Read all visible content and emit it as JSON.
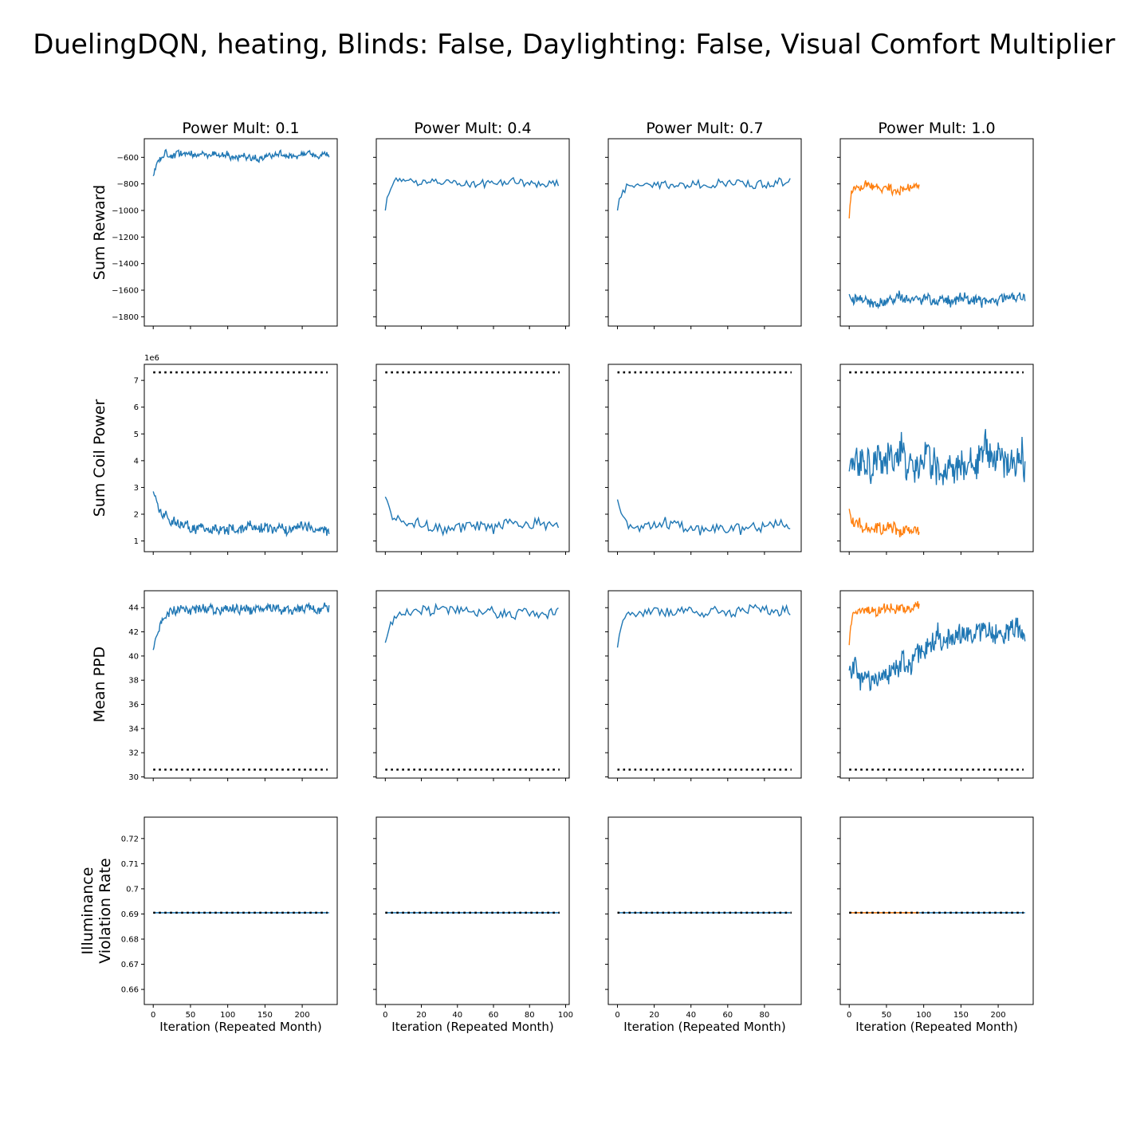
{
  "figure": {
    "title": "DuelingDQN, heating, Blinds: False, Daylighting: False, Visual Comfort Multiplier"
  },
  "chart_data": {
    "type": "line",
    "layout": "4 rows x 4 columns, shared y per row",
    "columns": [
      {
        "title": "Power Mult: 0.1",
        "xlim": [
          -12,
          247
        ],
        "xticks": [
          0,
          50,
          100,
          150,
          200
        ],
        "xlabel": "Iteration (Repeated Month)"
      },
      {
        "title": "Power Mult: 0.4",
        "xlim": [
          -5,
          102
        ],
        "xticks": [
          0,
          20,
          40,
          60,
          80,
          100
        ],
        "xlabel": "Iteration (Repeated Month)"
      },
      {
        "title": "Power Mult: 0.7",
        "xlim": [
          -5,
          100
        ],
        "xticks": [
          0,
          20,
          40,
          60,
          80
        ],
        "xlabel": "Iteration (Repeated Month)"
      },
      {
        "title": "Power Mult: 1.0",
        "xlim": [
          -12,
          247
        ],
        "xticks": [
          0,
          50,
          100,
          150,
          200
        ],
        "xlabel": "Iteration (Repeated Month)"
      }
    ],
    "rows": [
      {
        "ylabel": "Sum Reward",
        "ylim": [
          -1870,
          -460
        ],
        "yticks": [
          -1800,
          -1600,
          -1400,
          -1200,
          -1000,
          -800,
          -600
        ],
        "offset_label": ""
      },
      {
        "ylabel": "Sum Coil Power",
        "ylim": [
          0.6,
          7.6
        ],
        "yticks": [
          1,
          2,
          3,
          4,
          5,
          6,
          7
        ],
        "offset_label": "1e6"
      },
      {
        "ylabel": "Mean PPD",
        "ylim": [
          29.9,
          45.4
        ],
        "yticks": [
          30,
          32,
          34,
          36,
          38,
          40,
          42,
          44
        ],
        "offset_label": ""
      },
      {
        "ylabel": [
          "Illuminance",
          "Violation Rate"
        ],
        "ylim": [
          0.654,
          0.7285
        ],
        "yticks": [
          0.66,
          0.67,
          0.68,
          0.69,
          0.7,
          0.71,
          0.72
        ],
        "offset_label": ""
      }
    ],
    "colors": {
      "blue": "#1f77b4",
      "orange": "#ff7f0e",
      "reference": "#000000"
    },
    "reference_lines": {
      "row_1": [
        7.3
      ],
      "row_2": [
        30.6
      ],
      "row_3": [
        0.6905
      ]
    },
    "series": [
      {
        "row": 0,
        "col": 0,
        "color": "blue",
        "n": 237,
        "level": -585,
        "start": -740,
        "settle": 8,
        "noise": 18,
        "wander": 14,
        "seed": 11
      },
      {
        "row": 0,
        "col": 1,
        "color": "blue",
        "n": 97,
        "level": -790,
        "start": -1000,
        "settle": 2,
        "noise": 28,
        "wander": 10,
        "seed": 12
      },
      {
        "row": 0,
        "col": 2,
        "color": "blue",
        "n": 95,
        "level": -800,
        "start": -1000,
        "settle": 2,
        "noise": 28,
        "wander": 12,
        "seed": 13
      },
      {
        "row": 0,
        "col": 3,
        "color": "blue",
        "n": 237,
        "level": -1670,
        "start": -1630,
        "settle": 1,
        "noise": 30,
        "wander": 16,
        "seed": 14
      },
      {
        "row": 0,
        "col": 3,
        "color": "orange",
        "n": 95,
        "level": -820,
        "start": -1060,
        "settle": 2,
        "noise": 30,
        "wander": 14,
        "seed": 15
      },
      {
        "row": 1,
        "col": 0,
        "color": "blue",
        "n": 237,
        "level": 1.5,
        "start": 2.85,
        "settle": 12,
        "noise": 0.18,
        "wander": 0.08,
        "seed": 21
      },
      {
        "row": 1,
        "col": 1,
        "color": "blue",
        "n": 97,
        "level": 1.55,
        "start": 2.65,
        "settle": 3,
        "noise": 0.2,
        "wander": 0.07,
        "seed": 22
      },
      {
        "row": 1,
        "col": 2,
        "color": "blue",
        "n": 95,
        "level": 1.5,
        "start": 2.55,
        "settle": 3,
        "noise": 0.2,
        "wander": 0.07,
        "seed": 23
      },
      {
        "row": 1,
        "col": 3,
        "color": "blue",
        "n": 237,
        "level": 3.9,
        "start": 3.6,
        "settle": 1,
        "noise": 0.55,
        "wander": 0.25,
        "seed": 24
      },
      {
        "row": 1,
        "col": 3,
        "color": "orange",
        "n": 95,
        "level": 1.5,
        "start": 2.2,
        "settle": 6,
        "noise": 0.22,
        "wander": 0.08,
        "seed": 25
      },
      {
        "row": 2,
        "col": 0,
        "color": "blue",
        "n": 237,
        "level": 43.9,
        "start": 40.5,
        "settle": 10,
        "noise": 0.35,
        "wander": 0.12,
        "seed": 31
      },
      {
        "row": 2,
        "col": 1,
        "color": "blue",
        "n": 97,
        "level": 43.6,
        "start": 41.1,
        "settle": 3,
        "noise": 0.4,
        "wander": 0.12,
        "seed": 32
      },
      {
        "row": 2,
        "col": 2,
        "color": "blue",
        "n": 95,
        "level": 43.7,
        "start": 40.7,
        "settle": 3,
        "noise": 0.35,
        "wander": 0.12,
        "seed": 33
      },
      {
        "row": 2,
        "col": 3,
        "color": "blue",
        "n": 237,
        "level": 41.2,
        "start": 38.8,
        "settle": 1,
        "noise": 0.8,
        "wander": 0.3,
        "seed": 34,
        "trend_from": 37.6,
        "trend_to": 42.0
      },
      {
        "row": 2,
        "col": 3,
        "color": "orange",
        "n": 95,
        "level": 43.9,
        "start": 40.9,
        "settle": 3,
        "noise": 0.35,
        "wander": 0.12,
        "seed": 35
      },
      {
        "row": 3,
        "col": 0,
        "color": "blue",
        "n": 237,
        "level": 0.6905,
        "start": 0.6905,
        "settle": 1,
        "noise": 0,
        "wander": 0,
        "seed": 41
      },
      {
        "row": 3,
        "col": 1,
        "color": "blue",
        "n": 97,
        "level": 0.6905,
        "start": 0.6905,
        "settle": 1,
        "noise": 0,
        "wander": 0,
        "seed": 42
      },
      {
        "row": 3,
        "col": 2,
        "color": "blue",
        "n": 95,
        "level": 0.6905,
        "start": 0.6905,
        "settle": 1,
        "noise": 0,
        "wander": 0,
        "seed": 43
      },
      {
        "row": 3,
        "col": 3,
        "color": "blue",
        "n": 237,
        "level": 0.6905,
        "start": 0.6905,
        "settle": 1,
        "noise": 0,
        "wander": 0,
        "seed": 44
      },
      {
        "row": 3,
        "col": 3,
        "color": "orange",
        "n": 95,
        "level": 0.6905,
        "start": 0.6905,
        "settle": 1,
        "noise": 0,
        "wander": 0,
        "seed": 45
      }
    ]
  }
}
